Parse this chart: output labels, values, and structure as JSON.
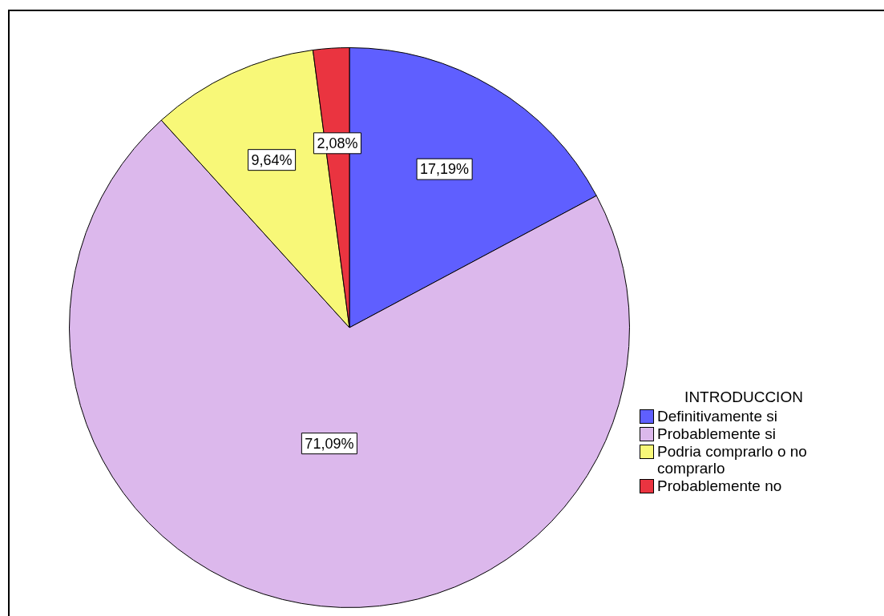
{
  "chart_data": {
    "type": "pie",
    "categories": [
      "Definitivamente si",
      "Probablemente si",
      "Podria comprarlo o no comprarlo",
      "Probablemente no"
    ],
    "values": [
      17.19,
      71.09,
      9.64,
      2.08
    ],
    "value_labels": [
      "17,19%",
      "71,09%",
      "9,64%",
      "2,08%"
    ],
    "colors": [
      "#5f5fff",
      "#dcb8ec",
      "#f8f878",
      "#ea3440"
    ],
    "legend_title": "INTRODUCCION",
    "legend": "right"
  }
}
